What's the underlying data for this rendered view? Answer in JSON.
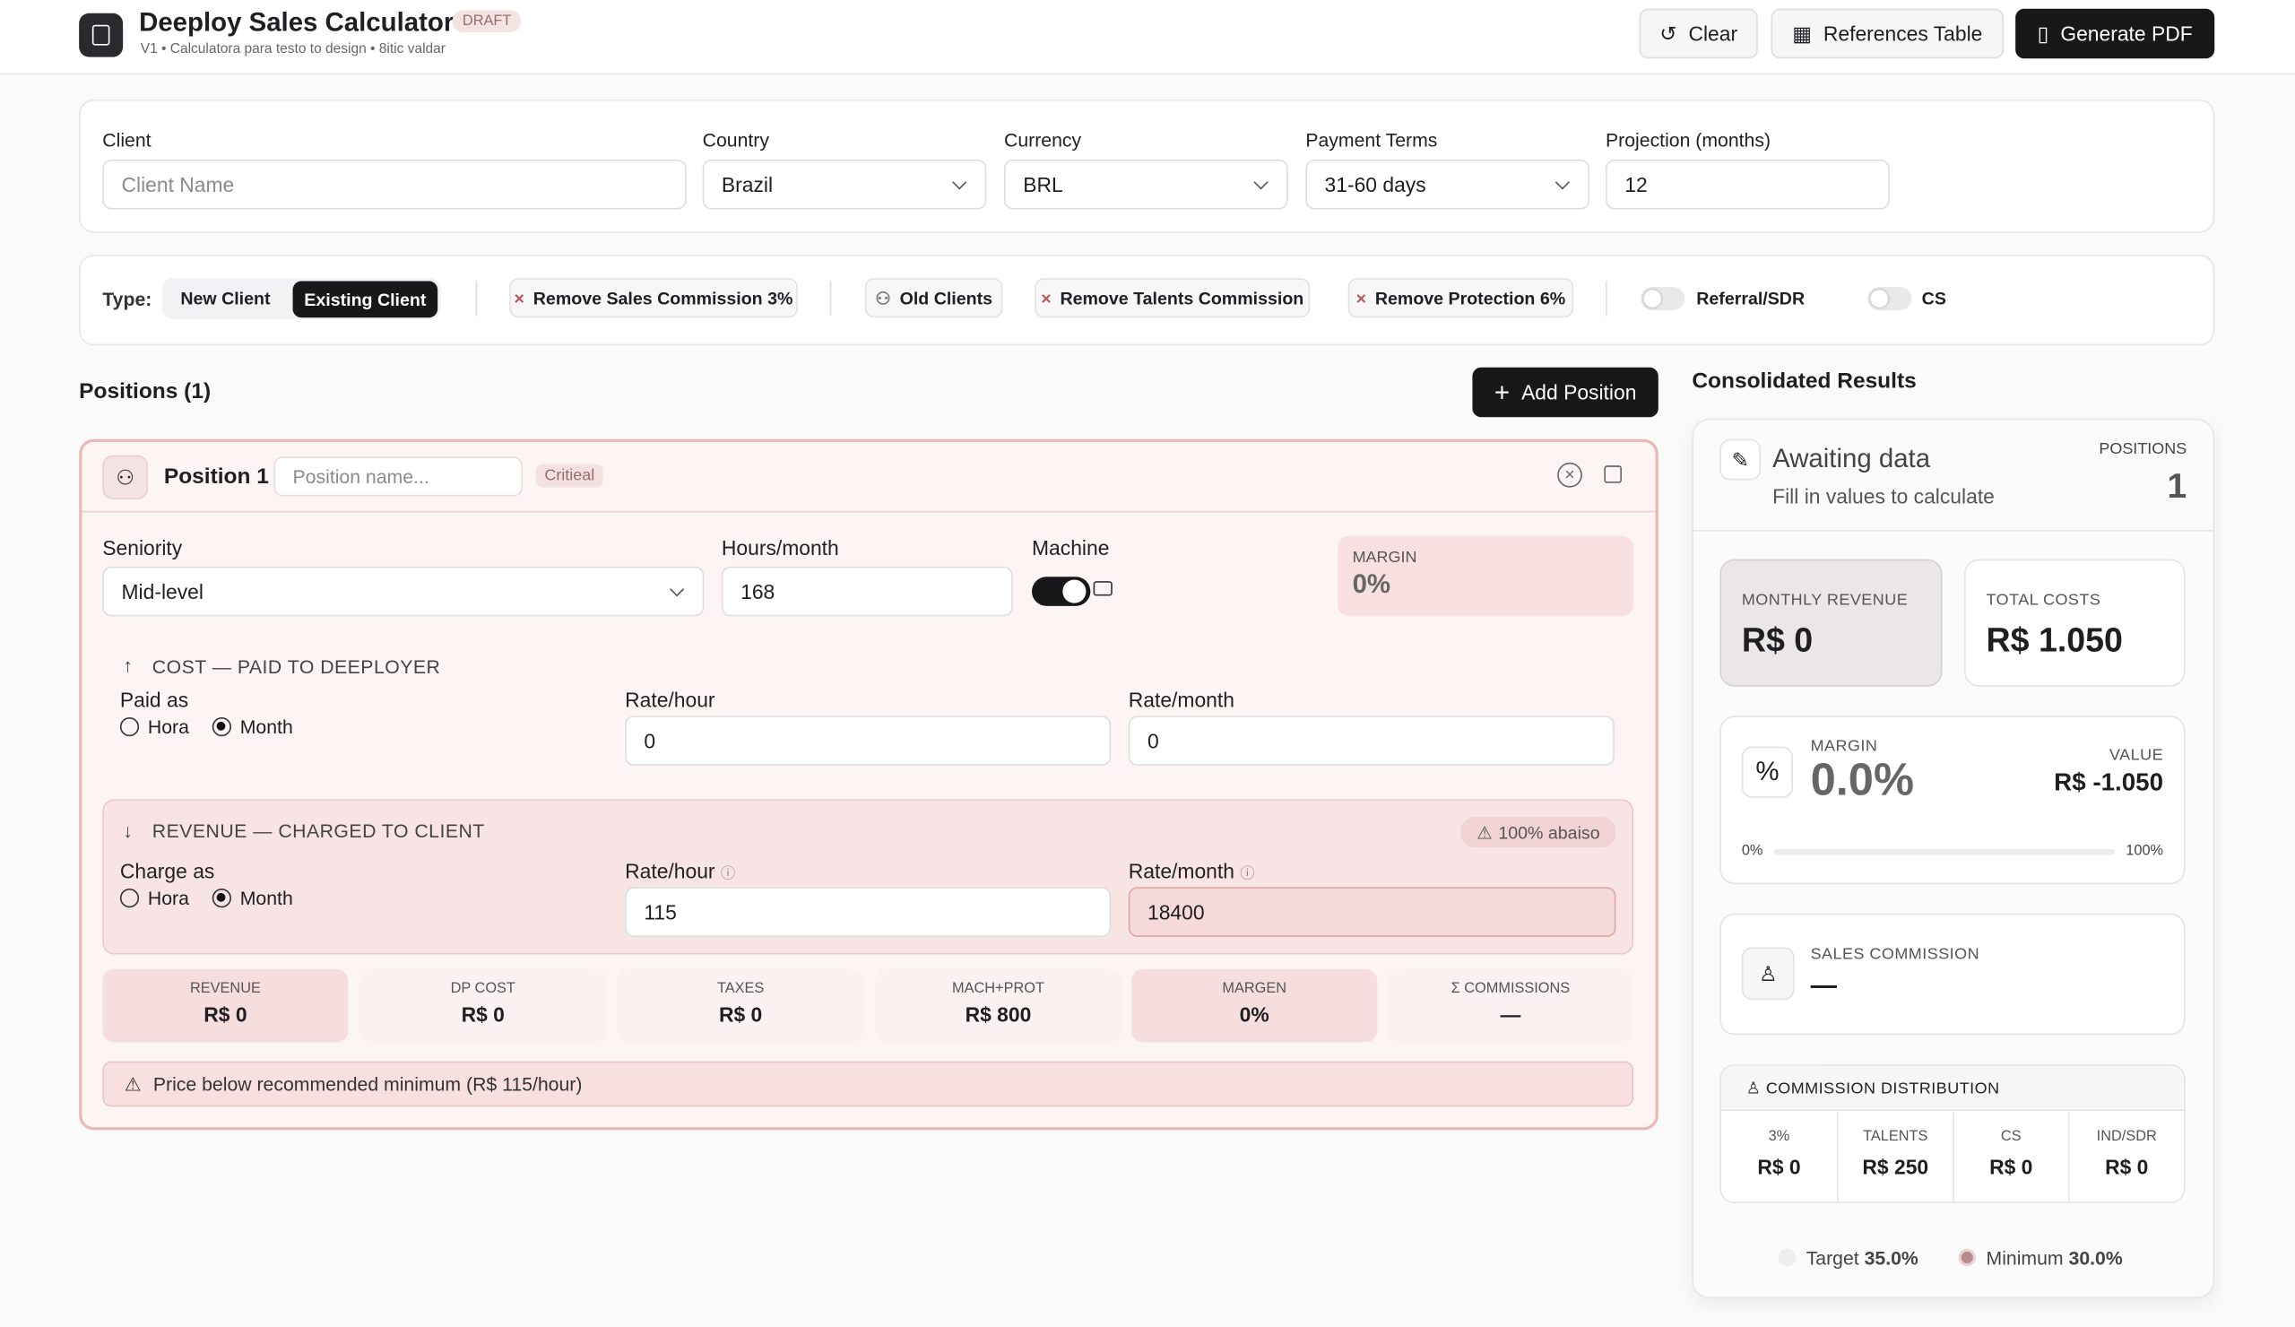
{
  "header": {
    "title": "Deeploy Sales Calculator",
    "badge": "DRAFT",
    "subtitle": "V1 • Calculatora para testo to design • 8itic valdar",
    "buttons": [
      "Clear",
      "References Table",
      "Generate PDF"
    ]
  },
  "form": {
    "client": {
      "label": "Client",
      "placeholder": "Client Name"
    },
    "country": {
      "label": "Country",
      "value": "Brazil"
    },
    "currency": {
      "label": "Currency",
      "value": "BRL"
    },
    "payment_terms": {
      "label": "Payment Terms",
      "value": "31-60 days"
    },
    "projection": {
      "label": "Projection (months)",
      "value": "12"
    }
  },
  "filters": {
    "type_label": "Type:",
    "types": [
      "New Client",
      "Existing Client"
    ],
    "chips": [
      "Remove Sales Commission 3%",
      "Old Clients",
      "Remove Talents Commission",
      "Remove Protection 6%"
    ],
    "toggles": [
      "Referral/SDR",
      "CS"
    ]
  },
  "positions": {
    "title": "Positions (1)",
    "add_button": "Add Position",
    "items": [
      {
        "name": "Position 1",
        "name_placeholder": "Position name...",
        "badge": "Critieal",
        "seniority_label": "Seniority",
        "seniority": "Mid-level",
        "hours_label": "Hours/month",
        "hours": "168",
        "machine_label": "Machine",
        "margin_label": "MARGIN",
        "margin": "0%",
        "cost": {
          "title": "COST — PAID TO DEEPLOYER",
          "paid_as": "Paid as",
          "options": [
            "Hora",
            "Month"
          ],
          "rate_hour_label": "Rate/hour",
          "rate_hour": "0",
          "rate_month_label": "Rate/month",
          "rate_month": "0"
        },
        "revenue": {
          "title": "REVENUE — CHARGED TO CLIENT",
          "badge": "100% abaiso",
          "charge_as": "Charge as",
          "options": [
            "Hora",
            "Month"
          ],
          "rate_hour_label": "Rate/hour",
          "rate_hour": "115",
          "rate_month_label": "Rate/month",
          "rate_month": "18400"
        },
        "summary": [
          {
            "label": "REVENUE",
            "value": "R$ 0"
          },
          {
            "label": "DP COST",
            "value": "R$ 0"
          },
          {
            "label": "TAXES",
            "value": "R$ 0"
          },
          {
            "label": "MACH+PROT",
            "value": "R$ 800"
          },
          {
            "label": "MARGEN",
            "value": "0%"
          },
          {
            "label": "Σ COMMISSIONS",
            "value": "—"
          }
        ],
        "warning": "Price below recommended minimum (R$ 115/hour)"
      }
    ]
  },
  "results": {
    "title": "Consolidated Results",
    "status": "Awaiting data",
    "hint": "Fill in values to calculate",
    "positions_label": "POSITIONS",
    "positions": "1",
    "monthly_revenue": {
      "label": "MONTHLY REVENUE",
      "value": "R$ 0"
    },
    "total_costs": {
      "label": "TOTAL COSTS",
      "value": "R$ 1.050"
    },
    "margin": {
      "label": "MARGIN",
      "value": "0.0%",
      "value_label": "VALUE",
      "amount": "R$ -1.050",
      "min": "0%",
      "max": "100%"
    },
    "sales_commission": {
      "label": "SALES COMMISSION",
      "value": "—"
    },
    "distribution": {
      "title": "COMMISSION DISTRIBUTION",
      "columns": [
        {
          "label": "3%",
          "value": "R$ 0"
        },
        {
          "label": "TALENTS",
          "value": "R$ 250"
        },
        {
          "label": "CS",
          "value": "R$ 0"
        },
        {
          "label": "IND/SDR",
          "value": "R$ 0"
        }
      ]
    },
    "legend": [
      {
        "label": "Target",
        "value": "35.0%"
      },
      {
        "label": "Minimum",
        "value": "30.0%"
      }
    ]
  }
}
